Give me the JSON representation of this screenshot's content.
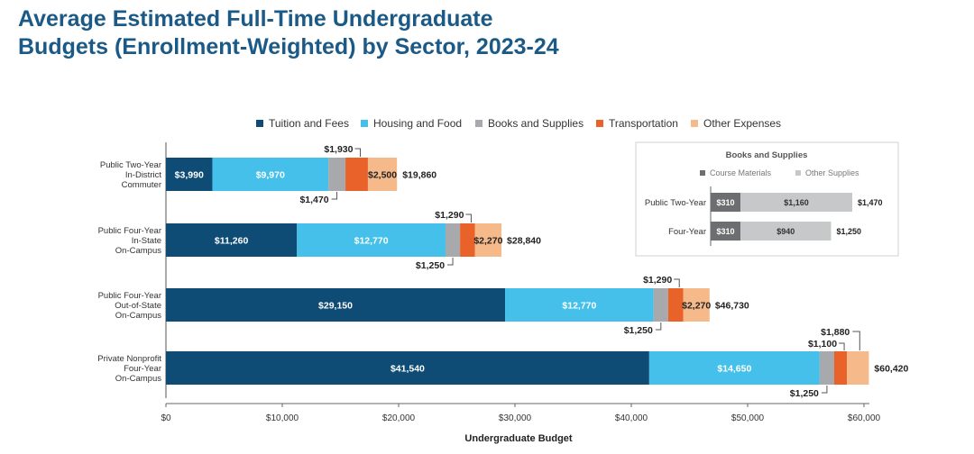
{
  "page_title_line1": "Average Estimated Full-Time Undergraduate",
  "page_title_line2": "Budgets (Enrollment-Weighted) by Sector, 2023-24",
  "chart_data": [
    {
      "type": "bar",
      "orientation": "horizontal",
      "stacked": true,
      "title": "Average Estimated Full-Time Undergraduate Budgets (Enrollment-Weighted) by Sector, 2023-24",
      "xlabel": "Undergraduate Budget",
      "ylabel": "",
      "xlim": [
        0,
        60000
      ],
      "x_ticks": [
        "$0",
        "$10,000",
        "$20,000",
        "$30,000",
        "$40,000",
        "$50,000",
        "$60,000"
      ],
      "grid": false,
      "legend_position": "top",
      "categories": [
        [
          "Public Two-Year",
          "In-District",
          "Commuter"
        ],
        [
          "Public Four-Year",
          "In-State",
          "On-Campus"
        ],
        [
          "Public Four-Year",
          "Out-of-State",
          "On-Campus"
        ],
        [
          "Private Nonprofit",
          "Four-Year",
          "On-Campus"
        ]
      ],
      "series": [
        {
          "name": "Tuition and Fees",
          "color": "#0f4c75",
          "values": [
            3990,
            11260,
            29150,
            41540
          ],
          "labels": [
            "$3,990",
            "$11,260",
            "$29,150",
            "$41,540"
          ]
        },
        {
          "name": "Housing and Food",
          "color": "#44c0ea",
          "values": [
            9970,
            12770,
            12770,
            14650
          ],
          "labels": [
            "$9,970",
            "$12,770",
            "$12,770",
            "$14,650"
          ]
        },
        {
          "name": "Books and Supplies",
          "color": "#a7a9ac",
          "values": [
            1470,
            1250,
            1250,
            1250
          ],
          "labels": [
            "$1,470",
            "$1,250",
            "$1,250",
            "$1,250"
          ]
        },
        {
          "name": "Transportation",
          "color": "#e8622a",
          "values": [
            1930,
            1290,
            1290,
            1100
          ],
          "labels": [
            "$1,930",
            "$1,290",
            "$1,290",
            "$1,100"
          ]
        },
        {
          "name": "Other Expenses",
          "color": "#f6b98a",
          "values": [
            2500,
            2270,
            2270,
            1880
          ],
          "labels": [
            "$2,500",
            "$2,270",
            "$2,270",
            "$1,880"
          ]
        }
      ],
      "totals": [
        "$19,860",
        "$28,840",
        "$46,730",
        "$60,420"
      ]
    },
    {
      "type": "bar",
      "orientation": "horizontal",
      "stacked": true,
      "title": "Books and Supplies",
      "legend_position": "top",
      "categories": [
        "Public Two-Year",
        "Four-Year"
      ],
      "series": [
        {
          "name": "Course Materials",
          "color": "#6d6e71",
          "values": [
            310,
            310
          ],
          "labels": [
            "$310",
            "$310"
          ]
        },
        {
          "name": "Other Supplies",
          "color": "#c7c8ca",
          "values": [
            1160,
            940
          ],
          "labels": [
            "$1,160",
            "$940"
          ]
        }
      ],
      "totals": [
        "$1,470",
        "$1,250"
      ]
    }
  ]
}
